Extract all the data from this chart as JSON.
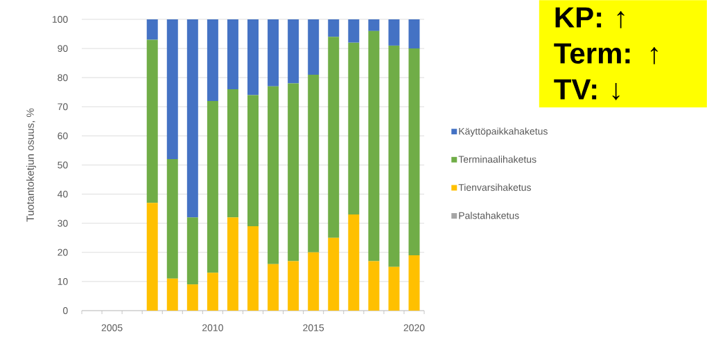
{
  "chart_data": {
    "type": "bar",
    "stacked": true,
    "ylabel": "Tuotantoketjun osuus, %",
    "x": [
      2007,
      2008,
      2009,
      2010,
      2011,
      2012,
      2013,
      2014,
      2015,
      2016,
      2017,
      2018,
      2019,
      2020
    ],
    "series": [
      {
        "name": "Palstahaketus",
        "color": "#a5a5a5",
        "values": [
          0,
          0,
          0,
          0,
          0,
          0,
          0,
          0,
          0,
          0,
          0,
          0,
          0,
          0
        ]
      },
      {
        "name": "Tienvarsihaketus",
        "color": "#ffc000",
        "values": [
          37,
          11,
          9,
          13,
          32,
          29,
          16,
          17,
          20,
          25,
          33,
          17,
          15,
          19
        ]
      },
      {
        "name": "Terminaalihaketus",
        "color": "#70ad47",
        "values": [
          56,
          41,
          23,
          59,
          44,
          45,
          61,
          61,
          61,
          69,
          59,
          79,
          76,
          71
        ]
      },
      {
        "name": "Käyttöpaikkahaketus",
        "color": "#4472c4",
        "values": [
          7,
          48,
          68,
          28,
          24,
          26,
          23,
          22,
          19,
          6,
          8,
          4,
          9,
          10
        ]
      }
    ],
    "xlim": [
      2003.5,
      2020.5
    ],
    "xticks": [
      {
        "value": 2003.5,
        "label": null
      },
      {
        "value": 2004.5,
        "label": null
      },
      2005,
      {
        "value": 2005.5,
        "label": null
      },
      {
        "value": 2006.5,
        "label": null
      },
      {
        "value": 2007.5,
        "label": null
      },
      {
        "value": 2008.5,
        "label": null
      },
      {
        "value": 2009.5,
        "label": null
      },
      2010,
      {
        "value": 2010.5,
        "label": null
      },
      {
        "value": 2011.5,
        "label": null
      },
      {
        "value": 2012.5,
        "label": null
      },
      {
        "value": 2013.5,
        "label": null
      },
      {
        "value": 2014.5,
        "label": null
      },
      2015,
      {
        "value": 2015.5,
        "label": null
      },
      {
        "value": 2016.5,
        "label": null
      },
      {
        "value": 2017.5,
        "label": null
      },
      {
        "value": 2018.5,
        "label": null
      },
      {
        "value": 2019.5,
        "label": null
      },
      2020,
      {
        "value": 2020.5,
        "label": null
      }
    ],
    "ylim": [
      0,
      100
    ],
    "yticks": [
      0,
      10,
      20,
      30,
      40,
      50,
      60,
      70,
      80,
      90,
      100
    ],
    "grid": "y",
    "legend": "right",
    "annotations": [
      "KP: ↑",
      "Term: ↑",
      "TV: ↓"
    ]
  }
}
